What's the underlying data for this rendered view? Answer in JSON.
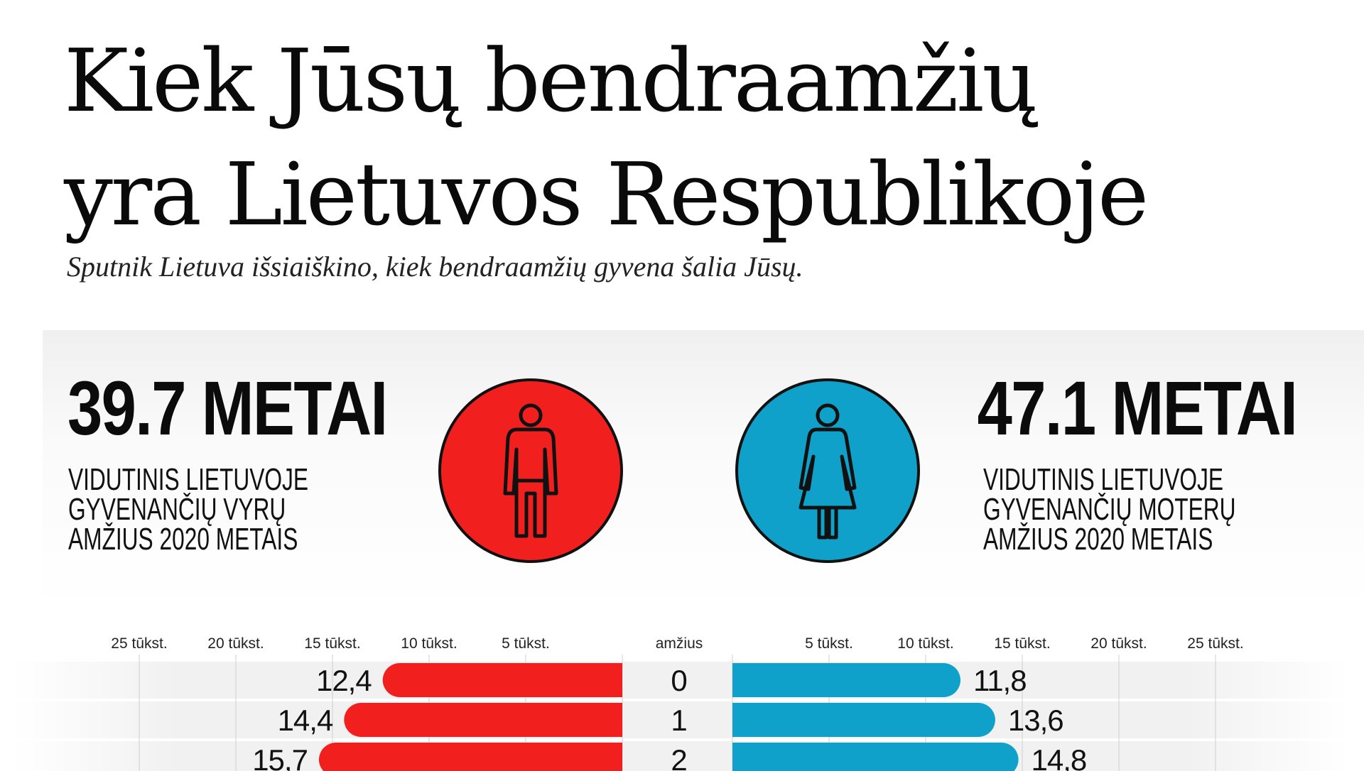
{
  "header": {
    "title_line1": "Kiek Jūsų bendraamžių",
    "title_line2": "yra Lietuvos Respublikoje",
    "subtitle": "Sputnik Lietuva išsiaiškino, kiek bendraamžių gyvena šalia Jūsų."
  },
  "stats": {
    "male": {
      "value": "39.7 METAI",
      "desc_lines": [
        "VIDUTINIS LIETUVOJE",
        "GYVENANČIŲ VYRŲ",
        "AMŽIUS 2020 METAIS"
      ],
      "circle_color": "#f21f1f",
      "icon": "man-icon"
    },
    "female": {
      "value": "47.1 METAI",
      "desc_lines": [
        "VIDUTINIS LIETUVOJE",
        "GYVENANČIŲ MOTERŲ",
        "AMŽIUS 2020 METAIS"
      ],
      "circle_color": "#0fa1c9",
      "icon": "woman-icon"
    }
  },
  "chart_data": {
    "type": "bar",
    "orientation": "horizontal",
    "layout": "population-pyramid",
    "center_header": "amžius",
    "x_unit": "tūkst.",
    "xlim": [
      0,
      25
    ],
    "left_ticks": [
      "25 tūkst.",
      "20 tūkst.",
      "15 tūkst.",
      "10 tūkst.",
      "5 tūkst."
    ],
    "right_ticks": [
      "5 tūkst.",
      "10 tūkst.",
      "15 tūkst.",
      "20 tūkst.",
      "25 tūkst."
    ],
    "tick_values": [
      5,
      10,
      15,
      20,
      25
    ],
    "categories": [
      "0",
      "1",
      "2"
    ],
    "series": [
      {
        "side": "left",
        "color": "#f21f1f",
        "values": [
          12.4,
          14.4,
          15.7
        ],
        "labels": [
          "12,4",
          "14,4",
          "15,7"
        ]
      },
      {
        "side": "right",
        "color": "#0fa1c9",
        "values": [
          11.8,
          13.6,
          14.8
        ],
        "labels": [
          "11,8",
          "13,6",
          "14,8"
        ]
      }
    ]
  }
}
